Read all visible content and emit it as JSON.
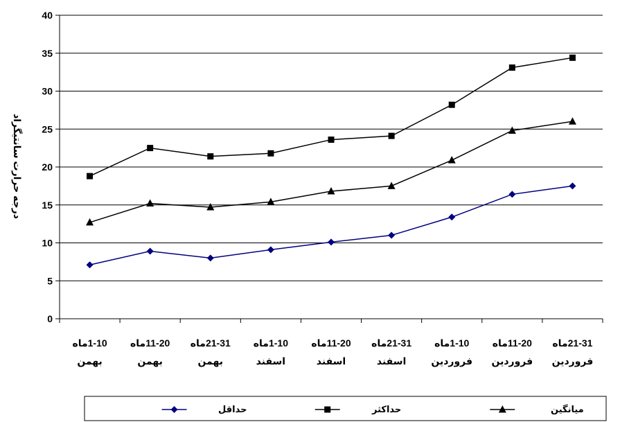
{
  "chart_data": {
    "type": "line",
    "title": "",
    "xlabel": "",
    "ylabel": "درجه حرارت سانتیگراد",
    "ylim": [
      0,
      40
    ],
    "yticks": [
      0,
      5,
      10,
      15,
      20,
      25,
      30,
      35,
      40
    ],
    "ytick_labels": [
      "0",
      "5",
      "10",
      "15",
      "20",
      "25",
      "30",
      "35",
      "40"
    ],
    "grid": "horizontal",
    "legend_position": "bottom",
    "categories": [
      {
        "line1": "1-10ماه",
        "line2": "بهمن"
      },
      {
        "line1": "11-20ماه",
        "line2": "بهمن"
      },
      {
        "line1": "21-31ماه",
        "line2": "بهمن"
      },
      {
        "line1": "1-10ماه",
        "line2": "اسفند"
      },
      {
        "line1": "11-20ماه",
        "line2": "اسفند"
      },
      {
        "line1": "21-31ماه",
        "line2": "اسفند"
      },
      {
        "line1": "1-10ماه",
        "line2": "فروردین"
      },
      {
        "line1": "11-20ماه",
        "line2": "فروردین"
      },
      {
        "line1": "21-31ماه",
        "line2": "فروردین"
      }
    ],
    "series": [
      {
        "name": "حداقل",
        "color": "#000080",
        "marker": "diamond",
        "values": [
          7.1,
          8.9,
          8.0,
          9.1,
          10.1,
          11.0,
          13.4,
          16.4,
          17.5
        ]
      },
      {
        "name": "حداکثر",
        "color": "#000000",
        "marker": "square",
        "values": [
          18.8,
          22.5,
          21.4,
          21.8,
          23.6,
          24.1,
          28.2,
          33.1,
          34.4
        ]
      },
      {
        "name": "میانگین",
        "color": "#000000",
        "marker": "triangle",
        "values": [
          12.7,
          15.2,
          14.7,
          15.4,
          16.8,
          17.5,
          20.9,
          24.8,
          26.0
        ]
      }
    ]
  }
}
